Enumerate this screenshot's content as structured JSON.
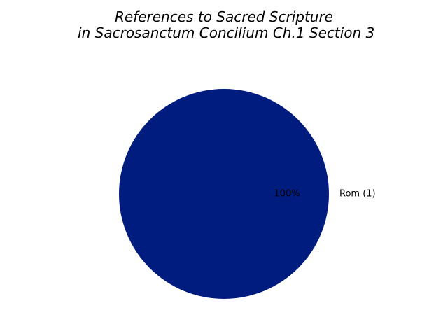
{
  "chart_data": {
    "type": "pie",
    "title_lines": [
      "References to Sacred Scripture",
      " in Sacrosanctum Concilium Ch.1 Section 3"
    ],
    "slices": [
      {
        "label": "Rom (1)",
        "value": 1,
        "percent_label": "100%",
        "color": "#001c7f"
      }
    ]
  }
}
